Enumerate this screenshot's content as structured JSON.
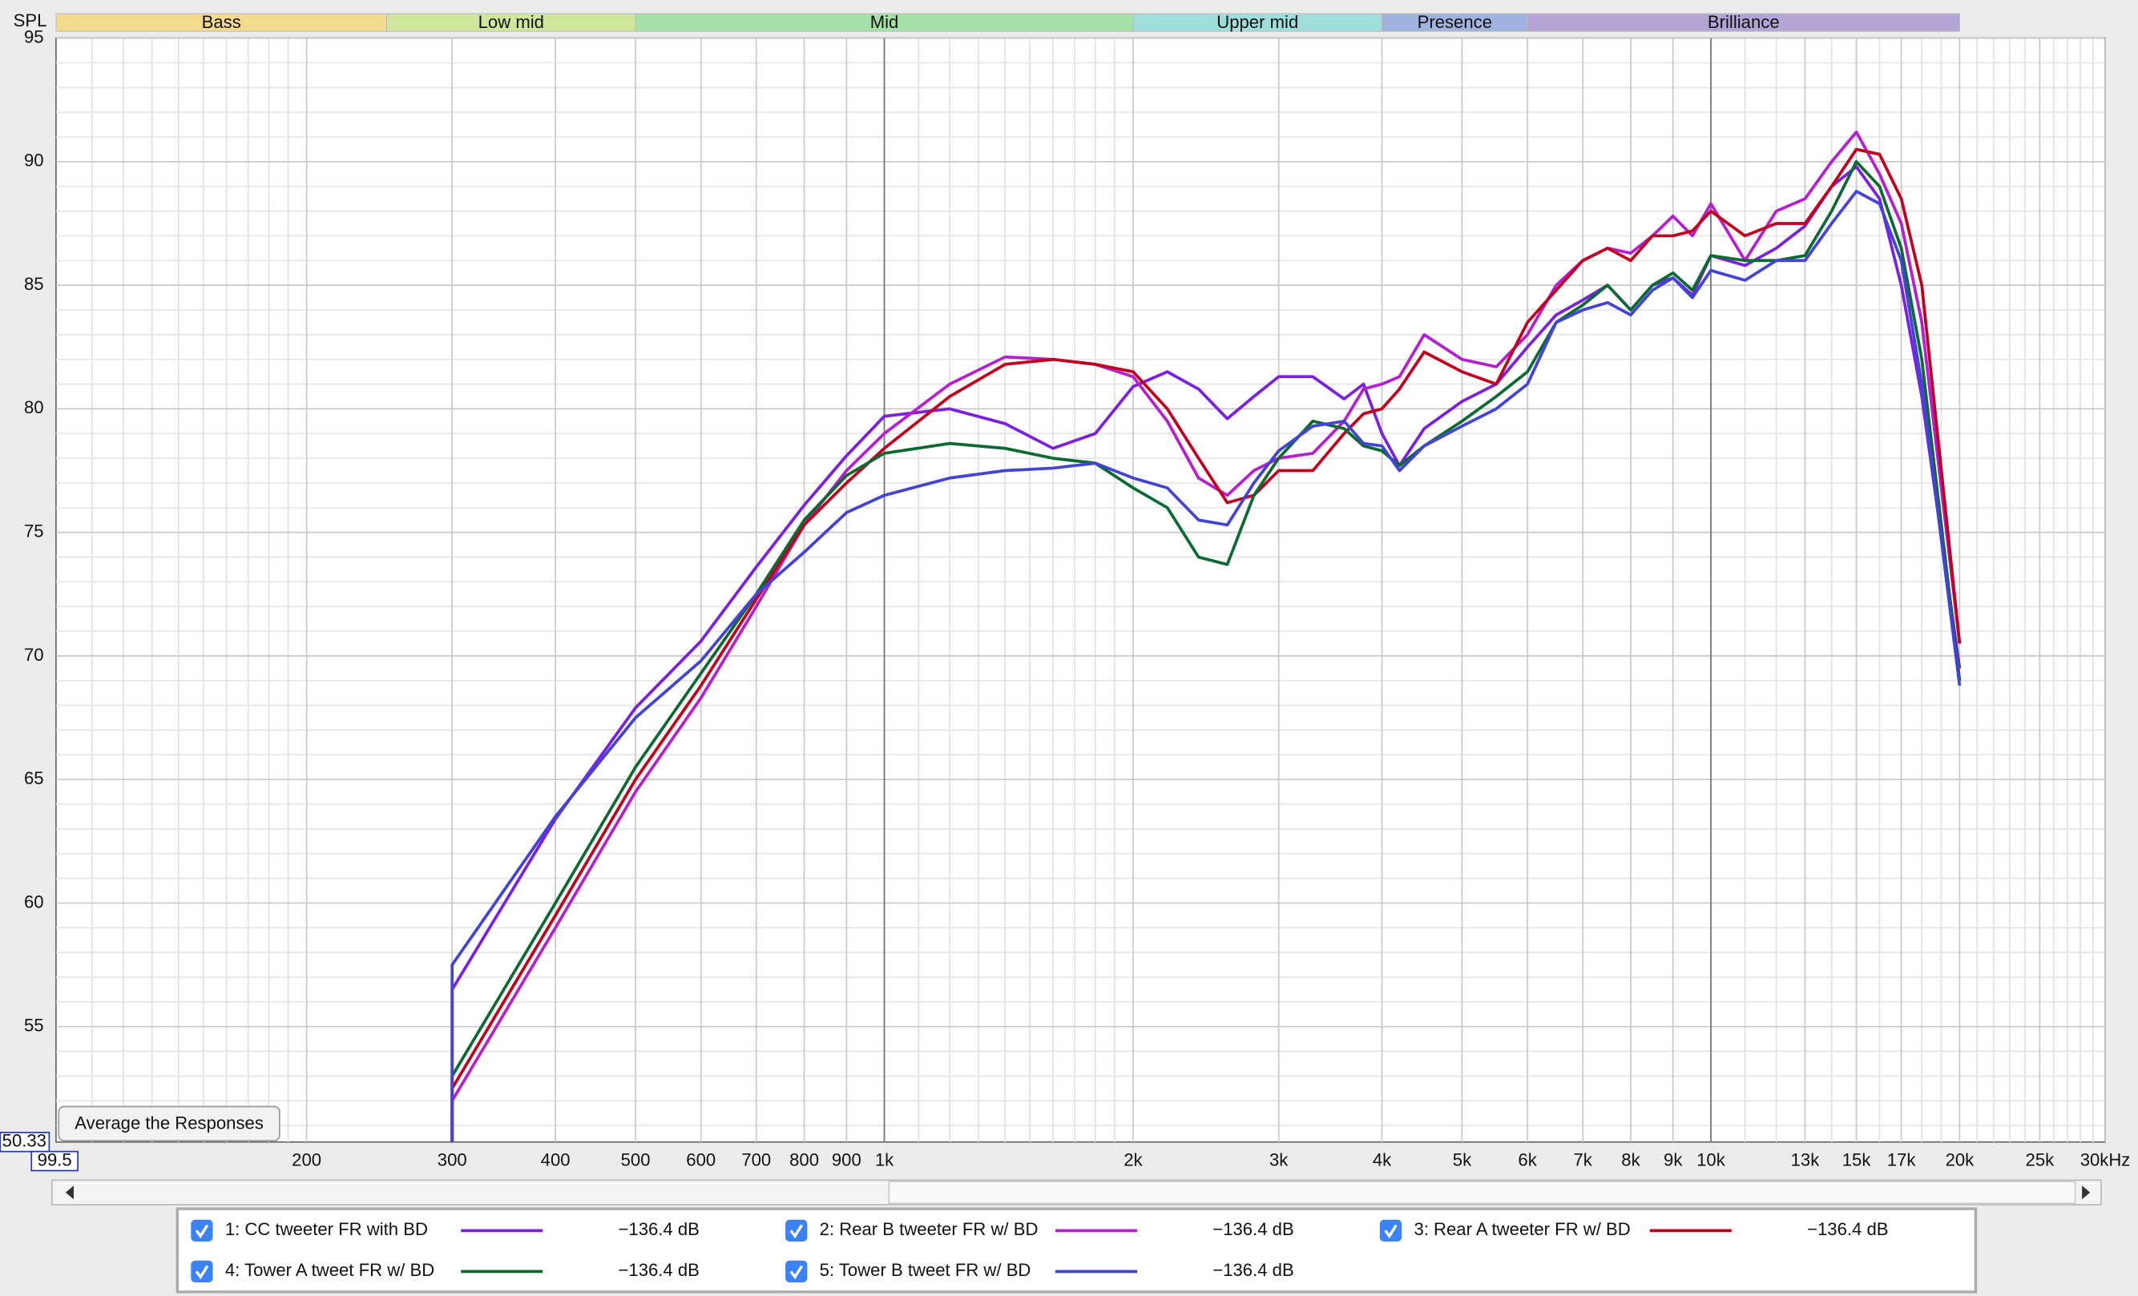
{
  "chart_data": {
    "type": "line",
    "y_label": "SPL",
    "log_x": true,
    "grid": true,
    "button": "Average the Responses",
    "xlim": [
      99.5,
      30000
    ],
    "ylim": [
      50.33,
      95
    ],
    "yticks": [
      55,
      60,
      65,
      70,
      75,
      80,
      85,
      90,
      95
    ],
    "y_minor_ticks": [
      51,
      52,
      53,
      54,
      56,
      57,
      58,
      59,
      61,
      62,
      63,
      64,
      66,
      67,
      68,
      69,
      71,
      72,
      73,
      74,
      76,
      77,
      78,
      79,
      81,
      82,
      83,
      84,
      86,
      87,
      88,
      89,
      91,
      92,
      93,
      94
    ],
    "xticks": [
      200,
      300,
      400,
      500,
      600,
      700,
      800,
      900,
      {
        "value": 1000,
        "label": "1k"
      },
      {
        "value": 2000,
        "label": "2k"
      },
      {
        "value": 3000,
        "label": "3k"
      },
      {
        "value": 4000,
        "label": "4k"
      },
      {
        "value": 5000,
        "label": "5k"
      },
      {
        "value": 6000,
        "label": "6k"
      },
      {
        "value": 7000,
        "label": "7k"
      },
      {
        "value": 8000,
        "label": "8k"
      },
      {
        "value": 9000,
        "label": "9k"
      },
      {
        "value": 10000,
        "label": "10k"
      },
      {
        "value": 13000,
        "label": "13k"
      },
      {
        "value": 15000,
        "label": "15k"
      },
      {
        "value": 17000,
        "label": "17k"
      },
      {
        "value": 20000,
        "label": "20k"
      },
      {
        "value": 25000,
        "label": "25k"
      },
      {
        "value": 30000,
        "label": "30kHz"
      }
    ],
    "major_xticks": [
      1000,
      10000
    ],
    "x_minor_ticks": [
      110,
      120,
      130,
      140,
      150,
      160,
      170,
      180,
      190,
      1100,
      1200,
      1300,
      1400,
      1500,
      1600,
      1700,
      1800,
      1900,
      11000,
      12000,
      14000,
      16000,
      18000,
      19000,
      21000,
      22000,
      23000,
      24000,
      26000,
      27000,
      28000,
      29000
    ],
    "bands": [
      {
        "label": "Bass",
        "end": 250,
        "color": "#f3da8e",
        "text_color": "#8a6b12"
      },
      {
        "label": "Low mid",
        "end": 500,
        "color": "#cfe79c",
        "text_color": "#5b7a1c"
      },
      {
        "label": "Mid",
        "end": 2000,
        "color": "#a5e0a8",
        "text_color": "#2f7a3a"
      },
      {
        "label": "Upper mid",
        "end": 4000,
        "color": "#9fdedb",
        "text_color": "#1f6f70"
      },
      {
        "label": "Presence",
        "end": 6000,
        "color": "#a0b2de",
        "text_color": "#2c3f7a"
      },
      {
        "label": "Brilliance",
        "end": 20000,
        "color": "#b4a4d5",
        "text_color": "#4a3775"
      }
    ],
    "x": [
      300,
      300,
      400,
      500,
      600,
      700,
      800,
      900,
      1000,
      1200,
      1400,
      1600,
      1800,
      2000,
      2200,
      2400,
      2600,
      2800,
      3000,
      3300,
      3600,
      3800,
      4000,
      4200,
      4500,
      5000,
      5500,
      6000,
      6500,
      7000,
      7500,
      8000,
      8500,
      9000,
      9500,
      10000,
      11000,
      12000,
      13000,
      14000,
      15000,
      16000,
      17000,
      18000,
      20000
    ],
    "series": [
      {
        "name": "1: CC tweeter FR with BD",
        "color": "#7b1fe0",
        "level": "−136.4 dB",
        "values": [
          50.33,
          56.5,
          63.4,
          67.9,
          70.6,
          73.6,
          76.1,
          78.1,
          79.7,
          80.0,
          79.4,
          78.4,
          79.0,
          80.9,
          81.5,
          80.8,
          79.6,
          80.5,
          81.3,
          81.3,
          80.4,
          81.0,
          79.0,
          77.7,
          79.2,
          80.3,
          81.0,
          82.5,
          83.8,
          84.4,
          85.0,
          84.0,
          85.0,
          85.3,
          84.6,
          86.2,
          85.8,
          86.5,
          87.4,
          89.0,
          89.8,
          88.5,
          85.0,
          80.5,
          69.5
        ]
      },
      {
        "name": "2: Rear B tweeter FR w/ BD",
        "color": "#b41fcf",
        "level": "−136.4 dB",
        "values": [
          50.33,
          52.0,
          59.0,
          64.5,
          68.3,
          72.0,
          75.3,
          77.5,
          79.0,
          81.0,
          82.1,
          82.0,
          81.8,
          81.3,
          79.5,
          77.2,
          76.5,
          77.5,
          78.0,
          78.2,
          79.5,
          80.8,
          81.0,
          81.3,
          83.0,
          82.0,
          81.7,
          83.0,
          85.0,
          86.0,
          86.5,
          86.3,
          87.0,
          87.8,
          87.0,
          88.3,
          86.0,
          88.0,
          88.5,
          90.0,
          91.2,
          89.5,
          87.5,
          83.5,
          70.5
        ]
      },
      {
        "name": "3: Rear A tweeter FR w/ BD",
        "color": "#c0001c",
        "level": "−136.4 dB",
        "values": [
          50.33,
          52.5,
          59.5,
          65.0,
          68.8,
          72.3,
          75.3,
          77.0,
          78.4,
          80.5,
          81.8,
          82.0,
          81.8,
          81.5,
          80.0,
          78.0,
          76.2,
          76.5,
          77.5,
          77.5,
          79.0,
          79.8,
          80.0,
          80.8,
          82.3,
          81.5,
          81.0,
          83.5,
          84.8,
          86.0,
          86.5,
          86.0,
          87.0,
          87.0,
          87.2,
          88.0,
          87.0,
          87.5,
          87.5,
          89.0,
          90.5,
          90.3,
          88.5,
          85.0,
          70.5
        ]
      },
      {
        "name": "4: Tower A tweet FR w/ BD",
        "color": "#0b6a32",
        "level": "−136.4 dB",
        "values": [
          50.33,
          53.0,
          60.0,
          65.5,
          69.3,
          72.5,
          75.5,
          77.3,
          78.2,
          78.6,
          78.4,
          78.0,
          77.8,
          76.8,
          76.0,
          74.0,
          73.7,
          76.5,
          78.0,
          79.5,
          79.2,
          78.5,
          78.3,
          77.7,
          78.5,
          79.5,
          80.5,
          81.5,
          83.5,
          84.2,
          85.0,
          84.0,
          85.0,
          85.5,
          84.8,
          86.2,
          86.0,
          86.0,
          86.2,
          88.0,
          90.0,
          89.0,
          86.5,
          82.0,
          69.0
        ]
      },
      {
        "name": "5: Tower B tweet FR w/ BD",
        "color": "#4343d8",
        "level": "−136.4 dB",
        "values": [
          50.33,
          57.5,
          63.5,
          67.5,
          69.8,
          72.5,
          74.2,
          75.8,
          76.5,
          77.2,
          77.5,
          77.6,
          77.8,
          77.2,
          76.8,
          75.5,
          75.3,
          77.0,
          78.3,
          79.3,
          79.5,
          78.6,
          78.5,
          77.5,
          78.5,
          79.3,
          80.0,
          81.0,
          83.5,
          84.0,
          84.3,
          83.8,
          84.8,
          85.3,
          84.5,
          85.6,
          85.2,
          86.0,
          86.0,
          87.5,
          88.8,
          88.3,
          86.0,
          81.0,
          68.8
        ]
      }
    ]
  }
}
